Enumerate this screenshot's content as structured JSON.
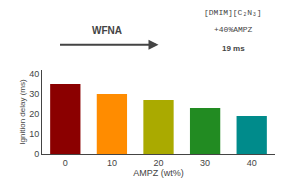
{
  "chart_data": {
    "type": "bar",
    "xlabel": "AMPZ (wt%)",
    "ylabel": "Ignition delay (ms)",
    "categories": [
      0,
      10,
      20,
      30,
      40
    ],
    "values": [
      35,
      30,
      27,
      23,
      19
    ],
    "colors": [
      "#8B0000",
      "#FF8C00",
      "#AAAA00",
      "#228B22",
      "#008B8B"
    ],
    "ylim": [
      0,
      42
    ],
    "yticks": [
      0,
      10,
      20,
      30,
      40
    ],
    "grid": false,
    "annotations": [
      "WFNA",
      "[DMIM][C₂N₃]",
      "+40%AMPZ",
      "19 ms"
    ]
  }
}
